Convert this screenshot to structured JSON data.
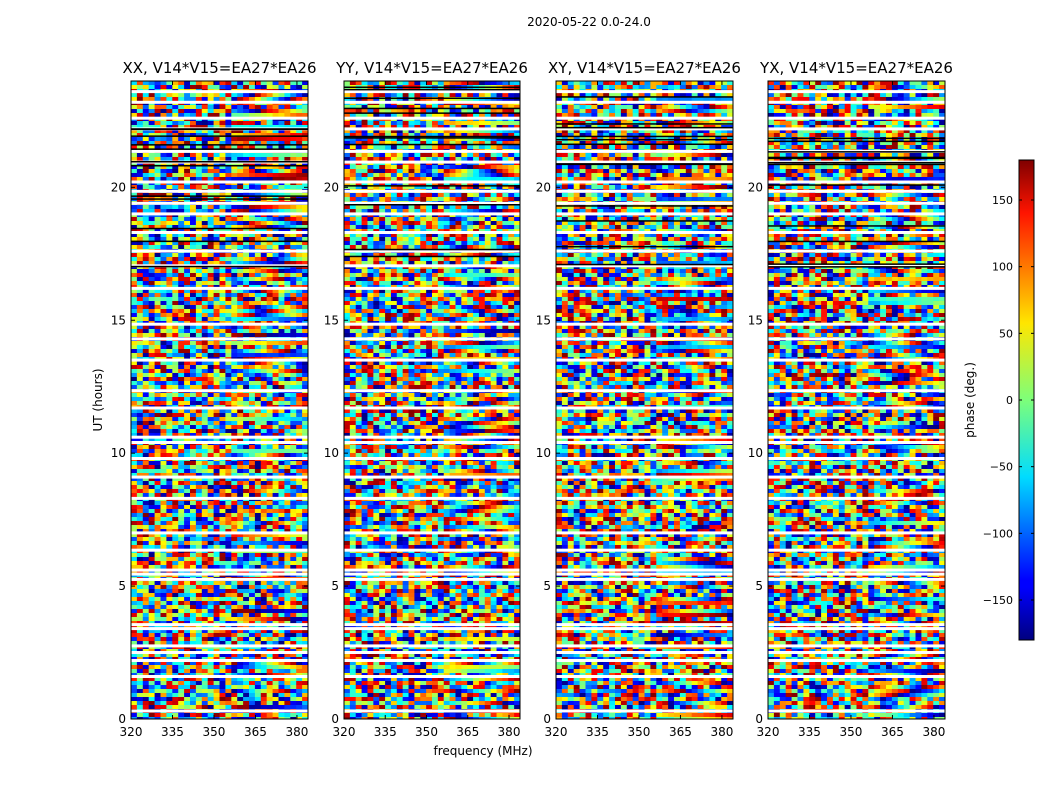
{
  "chart_data": {
    "type": "heatmap",
    "suptitle": "2020-05-22 0.0-24.0",
    "xlabel": "frequency (MHz)",
    "ylabel": "UT (hours)",
    "xlim": [
      320,
      384
    ],
    "ylim": [
      0,
      24
    ],
    "x_ticks": [
      320,
      335,
      350,
      365,
      380
    ],
    "y_ticks": [
      0,
      5,
      10,
      15,
      20
    ],
    "panels": [
      {
        "title": "XX, V14*V15=EA27*EA26"
      },
      {
        "title": "YY, V14*V15=EA27*EA26"
      },
      {
        "title": "XY, V14*V15=EA27*EA26"
      },
      {
        "title": "YX, V14*V15=EA27*EA26"
      }
    ],
    "colorbar": {
      "label": "phase (deg.)",
      "range": [
        -180,
        180
      ],
      "ticks": [
        150,
        100,
        50,
        0,
        -50,
        -100,
        -150
      ],
      "colormap": "jet"
    },
    "flagged_ut_hours": [
      0.3,
      1.6,
      2.2,
      2.5,
      2.75,
      3.4,
      3.55,
      5.25,
      5.45,
      5.6,
      6.35,
      7.0,
      8.3,
      9.1,
      9.8,
      10.4,
      10.6,
      11.7,
      12.35,
      13.5,
      14.3,
      14.85,
      16.2,
      17.05,
      17.6,
      18.3,
      19.0,
      19.4,
      19.85,
      20.2,
      20.95,
      21.35,
      22.2,
      22.6,
      23.2,
      23.6
    ]
  }
}
